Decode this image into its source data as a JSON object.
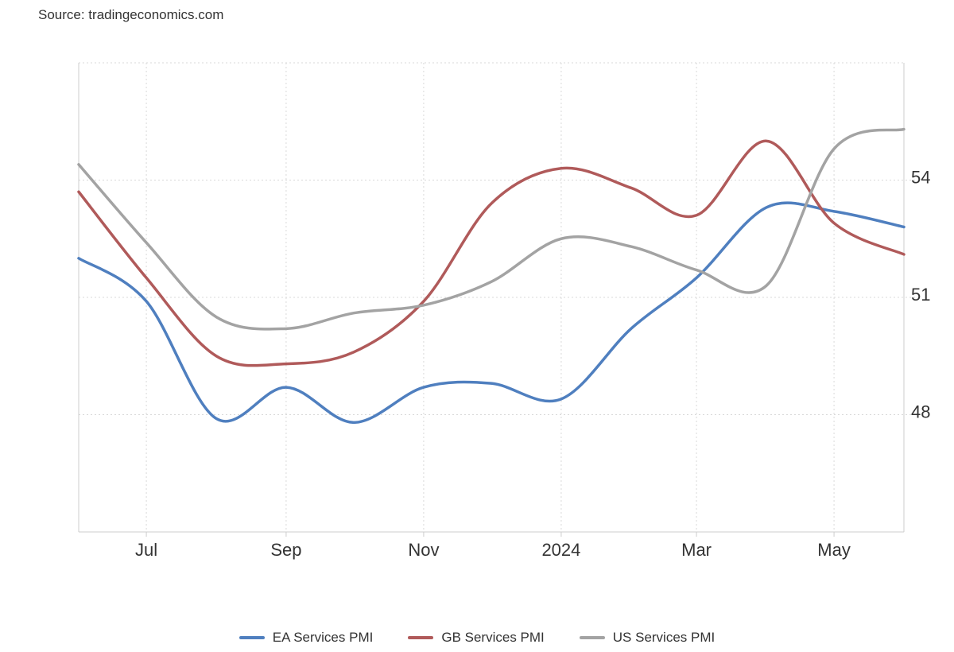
{
  "source": "Source: tradingeconomics.com",
  "chart_data": {
    "type": "line",
    "x_ticks": [
      "Jul",
      "Sep",
      "Nov",
      "2024",
      "Mar",
      "May"
    ],
    "x_tick_dates": [
      "2023-07-01",
      "2023-09-01",
      "2023-11-01",
      "2024-01-01",
      "2024-03-01",
      "2024-05-01"
    ],
    "x": [
      "2023-06-01",
      "2023-07-01",
      "2023-08-01",
      "2023-09-01",
      "2023-10-01",
      "2023-11-01",
      "2023-12-01",
      "2024-01-01",
      "2024-02-01",
      "2024-03-01",
      "2024-04-01",
      "2024-05-01",
      "2024-06-01"
    ],
    "xlim": [
      "2023-06-01",
      "2024-06-01"
    ],
    "ylim": [
      45,
      57
    ],
    "y_ticks": [
      48,
      51,
      54
    ],
    "grid": true,
    "legend_position": "bottom",
    "series": [
      {
        "name": "EA Services PMI",
        "color": "#4f7fbf",
        "values": [
          52.0,
          50.9,
          47.9,
          48.7,
          47.8,
          48.7,
          48.8,
          48.4,
          50.2,
          51.5,
          53.3,
          53.2,
          52.8
        ]
      },
      {
        "name": "GB Services PMI",
        "color": "#b05a5a",
        "values": [
          53.7,
          51.5,
          49.5,
          49.3,
          49.6,
          50.9,
          53.4,
          54.3,
          53.8,
          53.1,
          55.0,
          52.9,
          52.1
        ]
      },
      {
        "name": "US Services PMI",
        "color": "#a3a3a3",
        "values": [
          54.4,
          52.4,
          50.5,
          50.2,
          50.6,
          50.8,
          51.4,
          52.5,
          52.3,
          51.7,
          51.3,
          54.8,
          55.3
        ]
      }
    ]
  }
}
